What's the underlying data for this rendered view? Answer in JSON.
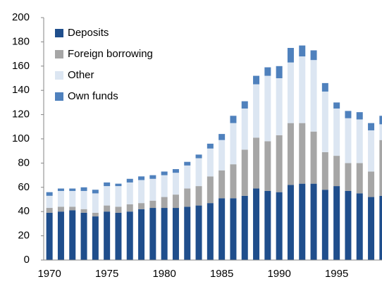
{
  "chart_data": {
    "type": "stacked-bar",
    "categories": [
      "1970",
      null,
      null,
      null,
      null,
      "1975",
      null,
      null,
      null,
      null,
      "1980",
      null,
      null,
      null,
      null,
      "1985",
      null,
      null,
      null,
      null,
      "1990",
      null,
      null,
      null,
      null,
      "1995",
      null,
      null,
      null,
      null
    ],
    "series": [
      {
        "name": "Deposits",
        "color": "#1f4e8c",
        "values": [
          39,
          40,
          41,
          39,
          36,
          40,
          39,
          40,
          42,
          43,
          43,
          43,
          44,
          45,
          47,
          51,
          51,
          53,
          59,
          57,
          56,
          62,
          63,
          63,
          58,
          61,
          57,
          55,
          52,
          53
        ]
      },
      {
        "name": "Foreign borrowing",
        "color": "#a6a6a6",
        "values": [
          4,
          4,
          3,
          3,
          3,
          5,
          5,
          6,
          5,
          6,
          9,
          11,
          15,
          16,
          22,
          23,
          28,
          38,
          42,
          41,
          47,
          51,
          50,
          43,
          31,
          25,
          23,
          25,
          21,
          46
        ]
      },
      {
        "name": "Other",
        "color": "#dce6f2",
        "values": [
          10,
          13,
          13,
          15,
          16,
          16,
          17,
          18,
          19,
          18,
          18,
          18,
          19,
          23,
          23,
          25,
          34,
          34,
          44,
          54,
          47,
          50,
          55,
          59,
          50,
          39,
          37,
          36,
          34,
          13
        ]
      },
      {
        "name": "Own funds",
        "color": "#4f81bd",
        "values": [
          3,
          2,
          2,
          3,
          3,
          3,
          2,
          3,
          3,
          3,
          3,
          3,
          3,
          3,
          4,
          5,
          6,
          6,
          7,
          7,
          10,
          12,
          9,
          8,
          7,
          5,
          6,
          6,
          6,
          7
        ]
      }
    ],
    "ylim": [
      0,
      200
    ],
    "yticks": [
      0,
      20,
      40,
      60,
      80,
      100,
      120,
      140,
      160,
      180,
      200
    ],
    "grid": false
  }
}
